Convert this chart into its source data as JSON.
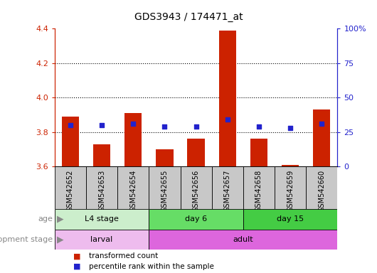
{
  "title": "GDS3943 / 174471_at",
  "samples": [
    "GSM542652",
    "GSM542653",
    "GSM542654",
    "GSM542655",
    "GSM542656",
    "GSM542657",
    "GSM542658",
    "GSM542659",
    "GSM542660"
  ],
  "transformed_count": [
    3.89,
    3.73,
    3.91,
    3.7,
    3.76,
    4.39,
    3.76,
    3.61,
    3.93
  ],
  "percentile_rank": [
    30,
    30,
    31,
    29,
    29,
    34,
    29,
    28,
    31
  ],
  "ylim_left": [
    3.6,
    4.4
  ],
  "ylim_right": [
    0,
    100
  ],
  "yticks_left": [
    3.6,
    3.8,
    4.0,
    4.2,
    4.4
  ],
  "yticks_right": [
    0,
    25,
    50,
    75,
    100
  ],
  "bar_color": "#CC2200",
  "dot_color": "#2222CC",
  "bar_bottom": 3.6,
  "age_groups": [
    {
      "label": "L4 stage",
      "start": 0,
      "end": 3,
      "color": "#CCEECC"
    },
    {
      "label": "day 6",
      "start": 3,
      "end": 6,
      "color": "#66DD66"
    },
    {
      "label": "day 15",
      "start": 6,
      "end": 9,
      "color": "#44CC44"
    }
  ],
  "dev_groups": [
    {
      "label": "larval",
      "start": 0,
      "end": 3,
      "color": "#EEBCEE"
    },
    {
      "label": "adult",
      "start": 3,
      "end": 9,
      "color": "#DD66DD"
    }
  ],
  "age_label": "age",
  "dev_label": "development stage",
  "legend_items": [
    {
      "color": "#CC2200",
      "label": "transformed count"
    },
    {
      "color": "#2222CC",
      "label": "percentile rank within the sample"
    }
  ],
  "grid_linestyle": "dotted",
  "bar_width": 0.55,
  "left_axis_color": "#CC2200",
  "right_axis_color": "#2222CC",
  "background_sample_row": "#C8C8C8"
}
